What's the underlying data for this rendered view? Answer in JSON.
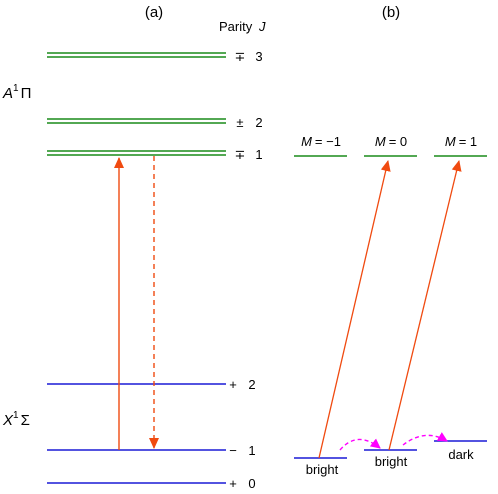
{
  "panels": {
    "a": {
      "label": "(a)"
    },
    "b": {
      "label": "(b)"
    }
  },
  "headers": {
    "parity": "Parity",
    "j": "J"
  },
  "states": {
    "upper": {
      "symbol": "A",
      "sup": "1",
      "term": "Π"
    },
    "lower": {
      "symbol": "X",
      "sup": "1",
      "term": "Σ"
    }
  },
  "levels": {
    "upper": [
      {
        "parity": "∓",
        "j": "3"
      },
      {
        "parity": "±",
        "j": "2"
      },
      {
        "parity": "∓",
        "j": "1"
      }
    ],
    "lower": [
      {
        "parity": "+",
        "j": "2"
      },
      {
        "parity": "−",
        "j": "1"
      },
      {
        "parity": "+",
        "j": "0"
      }
    ]
  },
  "sublevels": {
    "upper": [
      {
        "m_label": "M",
        "m_value": "= −1"
      },
      {
        "m_label": "M",
        "m_value": "= 0"
      },
      {
        "m_label": "M",
        "m_value": "= 1"
      }
    ],
    "lower": [
      "bright",
      "bright",
      "dark"
    ]
  },
  "colors": {
    "upper_level": "#1a8c1a",
    "lower_level": "#1a1ad6",
    "transition": "#f04a10",
    "coupling": "#ff00ff"
  }
}
